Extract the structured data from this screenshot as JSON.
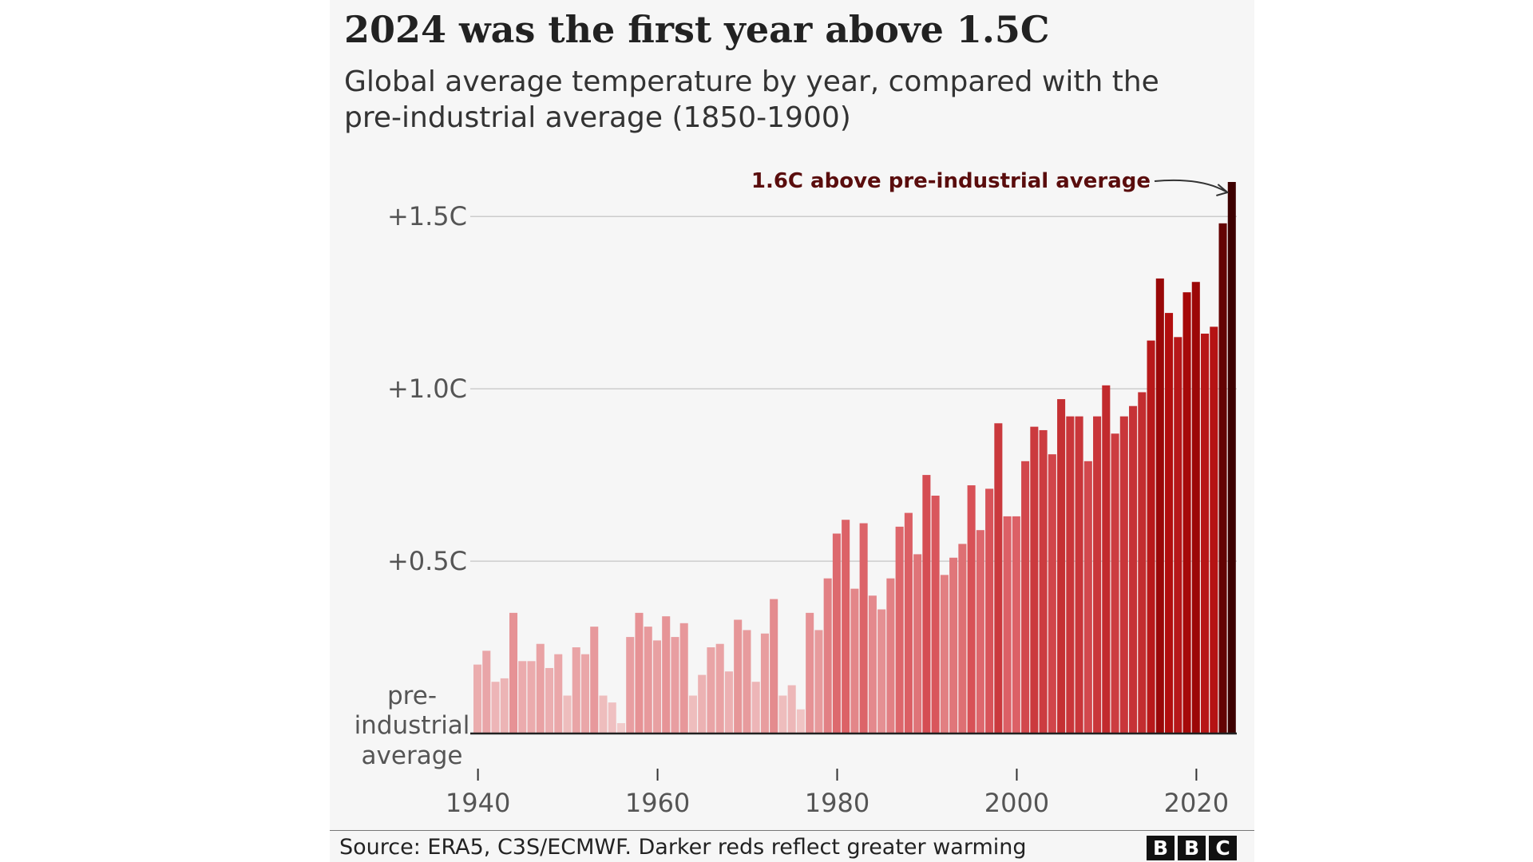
{
  "title": "2024 was the first year above 1.5C",
  "subtitle": "Global average temperature by year, compared with the pre-industrial average (1850-1900)",
  "source": "Source: ERA5, C3S/ECMWF. Darker reds reflect greater warming",
  "logo": [
    "B",
    "B",
    "C"
  ],
  "colors": {
    "light": "#f2d0d0",
    "mid": "#d9545a",
    "dark": "#b00a0a",
    "darkest": "#3d0000",
    "annotation": "#5a0d0d",
    "gridline": "#cccccc",
    "axis_text": "#555555"
  },
  "chart_data": {
    "type": "bar",
    "x": [
      1940,
      1941,
      1942,
      1943,
      1944,
      1945,
      1946,
      1947,
      1948,
      1949,
      1950,
      1951,
      1952,
      1953,
      1954,
      1955,
      1956,
      1957,
      1958,
      1959,
      1960,
      1961,
      1962,
      1963,
      1964,
      1965,
      1966,
      1967,
      1968,
      1969,
      1970,
      1971,
      1972,
      1973,
      1974,
      1975,
      1976,
      1977,
      1978,
      1979,
      1980,
      1981,
      1982,
      1983,
      1984,
      1985,
      1986,
      1987,
      1988,
      1989,
      1990,
      1991,
      1992,
      1993,
      1994,
      1995,
      1996,
      1997,
      1998,
      1999,
      2000,
      2001,
      2002,
      2003,
      2004,
      2005,
      2006,
      2007,
      2008,
      2009,
      2010,
      2011,
      2012,
      2013,
      2014,
      2015,
      2016,
      2017,
      2018,
      2019,
      2020,
      2021,
      2022,
      2023,
      2024
    ],
    "values": [
      0.2,
      0.24,
      0.15,
      0.16,
      0.35,
      0.21,
      0.21,
      0.26,
      0.19,
      0.23,
      0.11,
      0.25,
      0.23,
      0.31,
      0.11,
      0.09,
      0.03,
      0.28,
      0.35,
      0.31,
      0.27,
      0.34,
      0.28,
      0.32,
      0.11,
      0.17,
      0.25,
      0.26,
      0.18,
      0.33,
      0.3,
      0.15,
      0.29,
      0.39,
      0.11,
      0.14,
      0.07,
      0.35,
      0.3,
      0.45,
      0.58,
      0.62,
      0.42,
      0.61,
      0.4,
      0.36,
      0.45,
      0.6,
      0.64,
      0.52,
      0.75,
      0.69,
      0.46,
      0.51,
      0.55,
      0.72,
      0.59,
      0.71,
      0.9,
      0.63,
      0.63,
      0.79,
      0.89,
      0.88,
      0.81,
      0.97,
      0.92,
      0.92,
      0.79,
      0.92,
      1.01,
      0.87,
      0.92,
      0.95,
      0.99,
      1.14,
      1.32,
      1.22,
      1.15,
      1.28,
      1.31,
      1.16,
      1.18,
      1.48,
      1.6
    ],
    "title": "2024 was the first year above 1.5C",
    "subtitle": "Global average temperature by year, compared with the pre-industrial average (1850-1900)",
    "ylim": [
      0,
      1.6
    ],
    "xlim": [
      1940,
      2024
    ],
    "y_ticks": [
      {
        "value": 1.5,
        "label": "+1.5C"
      },
      {
        "value": 1.0,
        "label": "+1.0C"
      },
      {
        "value": 0.5,
        "label": "+0.5C"
      }
    ],
    "baseline_label": [
      "pre-",
      "industrial",
      "average"
    ],
    "x_ticks": [
      1940,
      1960,
      1980,
      2000,
      2020
    ],
    "annotation": {
      "text": "1.6C above pre-industrial average",
      "year": 2024,
      "value": 1.6
    },
    "grid": true
  }
}
